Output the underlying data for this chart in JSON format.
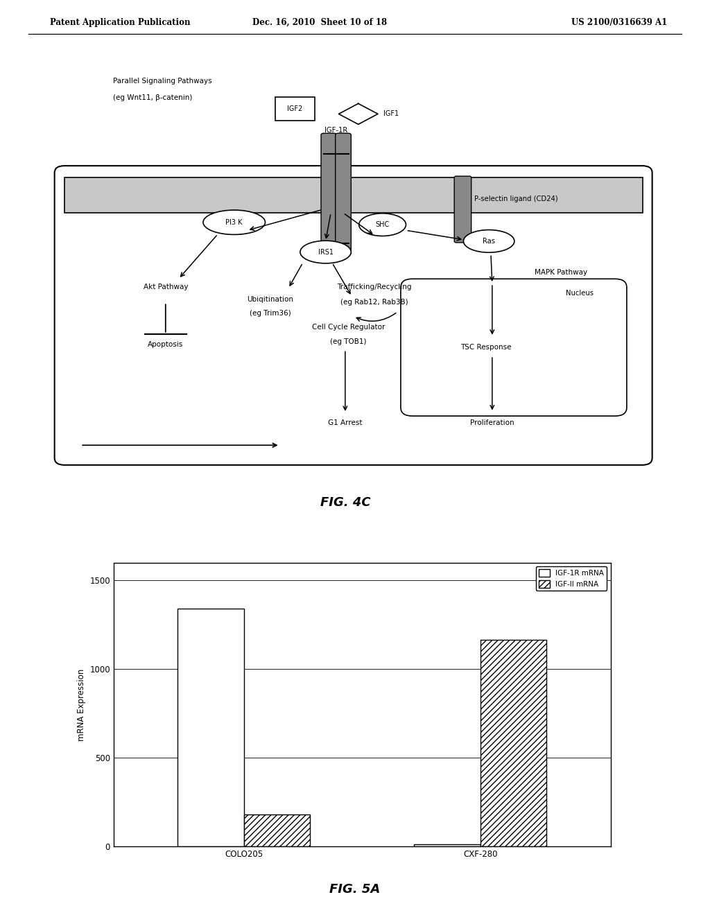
{
  "header_left": "Patent Application Publication",
  "header_mid": "Dec. 16, 2010  Sheet 10 of 18",
  "header_right": "US 2100/0316639 A1",
  "fig4c_label": "FIG. 4C",
  "fig5a_label": "FIG. 5A",
  "bar_categories": [
    "COLO205",
    "CXF-280"
  ],
  "bar_igfr": [
    1340,
    10
  ],
  "bar_igf2": [
    180,
    1165
  ],
  "ylabel": "mRNA Expression",
  "yticks": [
    0,
    500,
    1000,
    1500
  ],
  "legend_igfr": "IGF-1R mRNA",
  "legend_igf2": "IGF-II mRNA",
  "background": "#ffffff"
}
